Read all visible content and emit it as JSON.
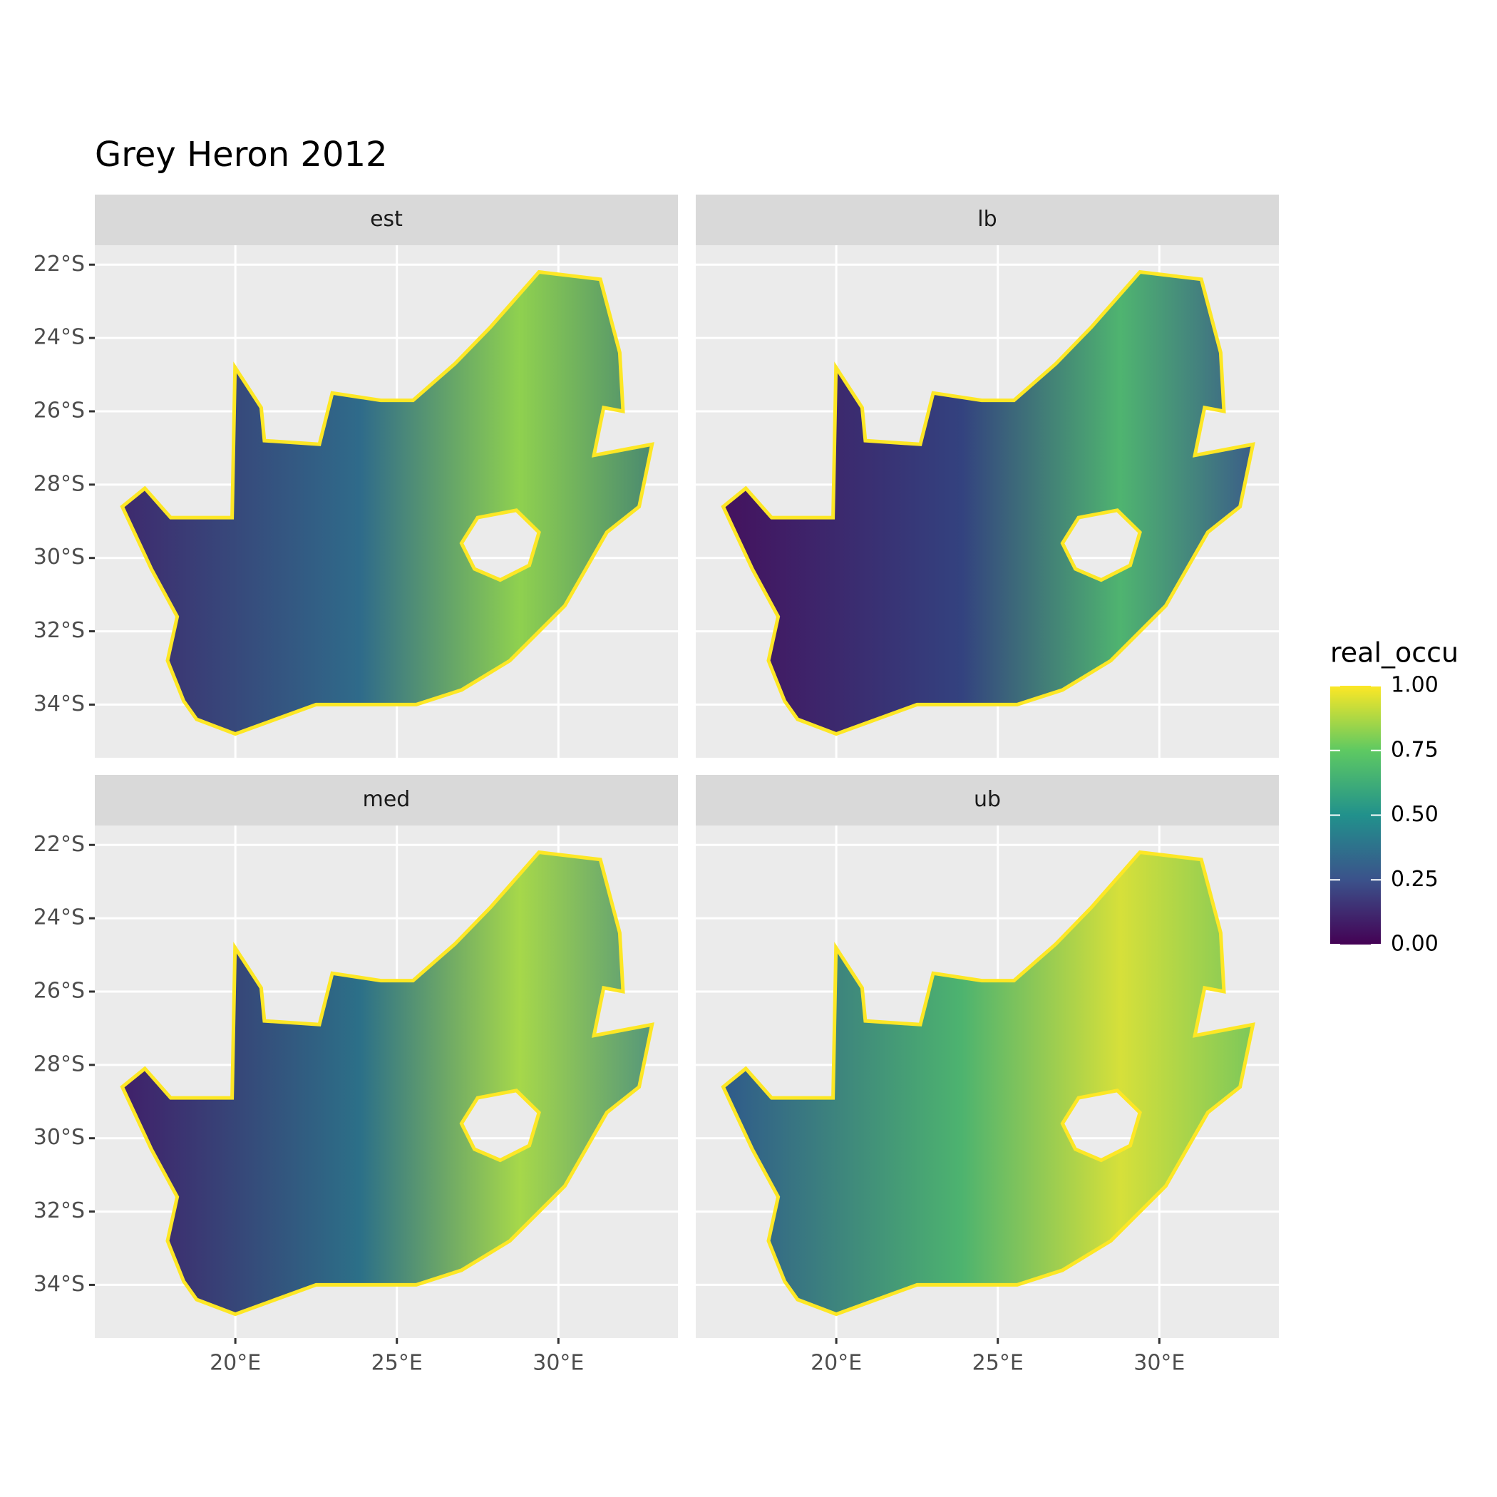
{
  "chart_data": {
    "type": "raster-map",
    "title": "Grey Heron 2012",
    "facets": [
      "est",
      "lb",
      "med",
      "ub"
    ],
    "xlim": [
      15.65,
      33.7
    ],
    "ylim": [
      -35.45,
      -21.47
    ],
    "xticks": [
      {
        "value": 20,
        "label": "20°E"
      },
      {
        "value": 25,
        "label": "25°E"
      },
      {
        "value": 30,
        "label": "30°E"
      }
    ],
    "yticks": [
      {
        "value": -22,
        "label": "22°S"
      },
      {
        "value": -24,
        "label": "24°S"
      },
      {
        "value": -26,
        "label": "26°S"
      },
      {
        "value": -28,
        "label": "28°S"
      },
      {
        "value": -30,
        "label": "30°S"
      },
      {
        "value": -32,
        "label": "32°S"
      },
      {
        "value": -34,
        "label": "34°S"
      }
    ],
    "grid": true,
    "legend": {
      "title": "real_occu",
      "limits": [
        0,
        1
      ],
      "ticks": [
        {
          "value": 0,
          "label": "0.00"
        },
        {
          "value": 0.25,
          "label": "0.25"
        },
        {
          "value": 0.5,
          "label": "0.50"
        },
        {
          "value": 0.75,
          "label": "0.75"
        },
        {
          "value": 1,
          "label": "1.00"
        }
      ]
    }
  }
}
